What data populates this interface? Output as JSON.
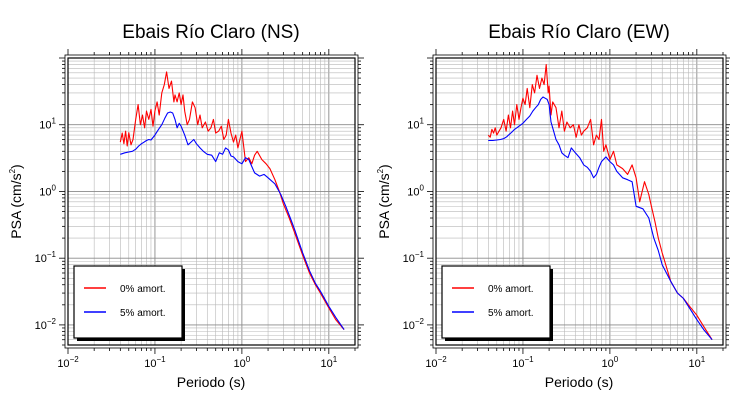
{
  "chart_data": [
    {
      "type": "line",
      "title": "Ebais Río Claro (NS)",
      "xlabel": "Periodo (s)",
      "ylabel": "PSA (cm/s",
      "ylabel_sup": "2",
      "ylabel_tail": ")",
      "xscale": "log",
      "yscale": "log",
      "xlim": [
        0.01,
        20
      ],
      "ylim": [
        0.005,
        100
      ],
      "x_ticks": [
        {
          "value": 0.01,
          "base": "10",
          "exp": "−2"
        },
        {
          "value": 0.1,
          "base": "10",
          "exp": "−1"
        },
        {
          "value": 1,
          "base": "10",
          "exp": "0"
        },
        {
          "value": 10,
          "base": "10",
          "exp": "1"
        }
      ],
      "y_ticks": [
        {
          "value": 0.01,
          "base": "10",
          "exp": "−2"
        },
        {
          "value": 0.1,
          "base": "10",
          "exp": "−1"
        },
        {
          "value": 1,
          "base": "10",
          "exp": "0"
        },
        {
          "value": 10,
          "base": "10",
          "exp": "1"
        }
      ],
      "grid": true,
      "legend_position": "bottom-left",
      "series": [
        {
          "name": "0% amort.",
          "color": "#ff0000",
          "x": [
            0.04,
            0.042,
            0.044,
            0.046,
            0.048,
            0.05,
            0.053,
            0.056,
            0.06,
            0.064,
            0.068,
            0.072,
            0.076,
            0.08,
            0.085,
            0.09,
            0.095,
            0.1,
            0.106,
            0.112,
            0.12,
            0.128,
            0.136,
            0.145,
            0.155,
            0.165,
            0.17,
            0.18,
            0.19,
            0.2,
            0.21,
            0.22,
            0.235,
            0.25,
            0.27,
            0.29,
            0.31,
            0.33,
            0.35,
            0.38,
            0.41,
            0.44,
            0.47,
            0.5,
            0.54,
            0.58,
            0.62,
            0.66,
            0.7,
            0.75,
            0.8,
            0.85,
            0.9,
            0.95,
            1.0,
            1.1,
            1.2,
            1.3,
            1.4,
            1.5,
            1.7,
            1.9,
            2.1,
            2.4,
            2.7,
            3.0,
            3.5,
            4.0,
            5.0,
            6.0,
            7.0,
            8.0,
            10.0,
            12.0,
            15.0
          ],
          "y": [
            5.5,
            7.5,
            5.2,
            8.0,
            4.8,
            7.6,
            5.0,
            6.0,
            12.0,
            20.0,
            10.0,
            14.0,
            9.0,
            16.0,
            12.0,
            17.0,
            9.5,
            16.0,
            22.0,
            14.0,
            30.0,
            40.0,
            62.0,
            35.0,
            45.0,
            22.0,
            28.0,
            22.0,
            30.0,
            20.0,
            28.0,
            16.0,
            10.0,
            12.0,
            22.0,
            18.0,
            10.0,
            14.0,
            9.0,
            11.0,
            8.0,
            9.0,
            12.0,
            7.5,
            8.0,
            9.5,
            6.0,
            7.0,
            12.0,
            7.5,
            5.5,
            7.0,
            4.5,
            6.0,
            8.0,
            2.8,
            3.2,
            2.6,
            3.5,
            4.0,
            3.0,
            2.6,
            2.2,
            1.5,
            1.0,
            0.65,
            0.4,
            0.25,
            0.11,
            0.06,
            0.04,
            0.03,
            0.018,
            0.012,
            0.0085
          ]
        },
        {
          "name": "5% amort.",
          "color": "#0000ff",
          "x": [
            0.04,
            0.045,
            0.05,
            0.055,
            0.06,
            0.065,
            0.07,
            0.075,
            0.08,
            0.085,
            0.09,
            0.1,
            0.11,
            0.12,
            0.13,
            0.14,
            0.15,
            0.16,
            0.17,
            0.18,
            0.19,
            0.2,
            0.22,
            0.24,
            0.26,
            0.28,
            0.3,
            0.33,
            0.36,
            0.4,
            0.45,
            0.5,
            0.55,
            0.6,
            0.65,
            0.7,
            0.75,
            0.8,
            0.9,
            1.0,
            1.1,
            1.2,
            1.4,
            1.6,
            1.8,
            2.0,
            2.4,
            2.8,
            3.2,
            3.6,
            4.0,
            5.0,
            6.0,
            7.0,
            8.0,
            10.0,
            12.0,
            15.0
          ],
          "y": [
            3.6,
            3.8,
            3.9,
            4.0,
            4.3,
            4.8,
            5.2,
            5.5,
            5.8,
            6.0,
            5.9,
            7.0,
            8.5,
            10.0,
            12.5,
            15.0,
            15.5,
            15.0,
            12.0,
            9.0,
            10.5,
            9.5,
            7.0,
            5.0,
            5.5,
            6.0,
            5.2,
            4.5,
            4.0,
            3.6,
            3.5,
            2.8,
            3.8,
            3.6,
            4.5,
            4.2,
            3.4,
            3.3,
            2.8,
            2.6,
            3.2,
            3.0,
            1.9,
            1.7,
            1.8,
            1.6,
            1.3,
            0.9,
            0.6,
            0.4,
            0.28,
            0.12,
            0.065,
            0.042,
            0.032,
            0.019,
            0.013,
            0.0085
          ]
        }
      ]
    },
    {
      "type": "line",
      "title": "Ebais Río Claro (EW)",
      "xlabel": "Periodo (s)",
      "ylabel": "PSA (cm/s",
      "ylabel_sup": "2",
      "ylabel_tail": ")",
      "xscale": "log",
      "yscale": "log",
      "xlim": [
        0.01,
        20
      ],
      "ylim": [
        0.005,
        100
      ],
      "x_ticks": [
        {
          "value": 0.01,
          "base": "10",
          "exp": "−2"
        },
        {
          "value": 0.1,
          "base": "10",
          "exp": "−1"
        },
        {
          "value": 1,
          "base": "10",
          "exp": "0"
        },
        {
          "value": 10,
          "base": "10",
          "exp": "1"
        }
      ],
      "y_ticks": [
        {
          "value": 0.01,
          "base": "10",
          "exp": "−2"
        },
        {
          "value": 0.1,
          "base": "10",
          "exp": "−1"
        },
        {
          "value": 1,
          "base": "10",
          "exp": "0"
        },
        {
          "value": 10,
          "base": "10",
          "exp": "1"
        }
      ],
      "grid": true,
      "legend_position": "bottom-left",
      "series": [
        {
          "name": "0% amort.",
          "color": "#ff0000",
          "x": [
            0.04,
            0.042,
            0.044,
            0.046,
            0.048,
            0.05,
            0.053,
            0.056,
            0.06,
            0.064,
            0.068,
            0.072,
            0.076,
            0.08,
            0.085,
            0.09,
            0.095,
            0.1,
            0.106,
            0.112,
            0.12,
            0.128,
            0.136,
            0.145,
            0.155,
            0.165,
            0.175,
            0.185,
            0.195,
            0.2,
            0.21,
            0.22,
            0.24,
            0.26,
            0.28,
            0.3,
            0.32,
            0.35,
            0.38,
            0.41,
            0.44,
            0.47,
            0.5,
            0.55,
            0.6,
            0.65,
            0.7,
            0.75,
            0.8,
            0.85,
            0.9,
            1.0,
            1.1,
            1.2,
            1.4,
            1.6,
            1.8,
            2.0,
            2.2,
            2.5,
            2.8,
            3.0,
            3.3,
            3.6,
            4.0,
            5.0,
            6.0,
            7.0,
            8.0,
            10.0,
            12.0,
            15.0
          ],
          "y": [
            7.0,
            6.5,
            8.5,
            7.5,
            9.0,
            7.0,
            8.0,
            9.0,
            12.0,
            8.0,
            14.0,
            9.0,
            16.0,
            10.0,
            20.0,
            12.0,
            18.0,
            25.0,
            20.0,
            35.0,
            18.0,
            40.0,
            30.0,
            55.0,
            35.0,
            50.0,
            40.0,
            80.0,
            30.0,
            38.0,
            14.0,
            22.0,
            18.0,
            9.0,
            16.0,
            8.0,
            11.0,
            9.0,
            10.0,
            6.5,
            10.0,
            7.0,
            8.0,
            9.0,
            12.0,
            5.0,
            7.0,
            6.0,
            12.0,
            4.0,
            5.0,
            3.0,
            4.0,
            2.5,
            2.2,
            1.8,
            2.5,
            1.6,
            0.7,
            1.4,
            0.9,
            0.6,
            0.35,
            0.2,
            0.12,
            0.045,
            0.03,
            0.025,
            0.02,
            0.014,
            0.0095,
            0.006
          ]
        },
        {
          "name": "5% amort.",
          "color": "#0000ff",
          "x": [
            0.04,
            0.045,
            0.05,
            0.055,
            0.06,
            0.065,
            0.07,
            0.075,
            0.08,
            0.085,
            0.09,
            0.1,
            0.11,
            0.12,
            0.13,
            0.14,
            0.15,
            0.16,
            0.17,
            0.18,
            0.19,
            0.2,
            0.21,
            0.22,
            0.24,
            0.26,
            0.28,
            0.3,
            0.33,
            0.36,
            0.4,
            0.45,
            0.5,
            0.55,
            0.6,
            0.65,
            0.7,
            0.75,
            0.8,
            0.9,
            1.0,
            1.1,
            1.2,
            1.4,
            1.6,
            1.8,
            2.0,
            2.4,
            2.8,
            3.2,
            3.6,
            4.0,
            5.0,
            6.0,
            7.0,
            8.0,
            10.0,
            12.0,
            15.0
          ],
          "y": [
            5.8,
            5.8,
            5.9,
            6.0,
            6.2,
            6.6,
            7.2,
            7.8,
            8.5,
            9.0,
            9.5,
            10.5,
            12.0,
            13.5,
            16.0,
            18.0,
            20.0,
            24.0,
            26.0,
            25.0,
            24.0,
            20.0,
            11.0,
            9.0,
            6.0,
            5.0,
            3.8,
            3.5,
            3.2,
            4.5,
            3.8,
            3.2,
            2.5,
            2.3,
            2.0,
            1.6,
            1.8,
            2.3,
            2.8,
            3.3,
            2.8,
            2.5,
            2.0,
            1.6,
            1.5,
            1.4,
            0.6,
            0.55,
            0.4,
            0.2,
            0.13,
            0.08,
            0.045,
            0.03,
            0.025,
            0.019,
            0.012,
            0.0085,
            0.006
          ]
        }
      ]
    }
  ]
}
